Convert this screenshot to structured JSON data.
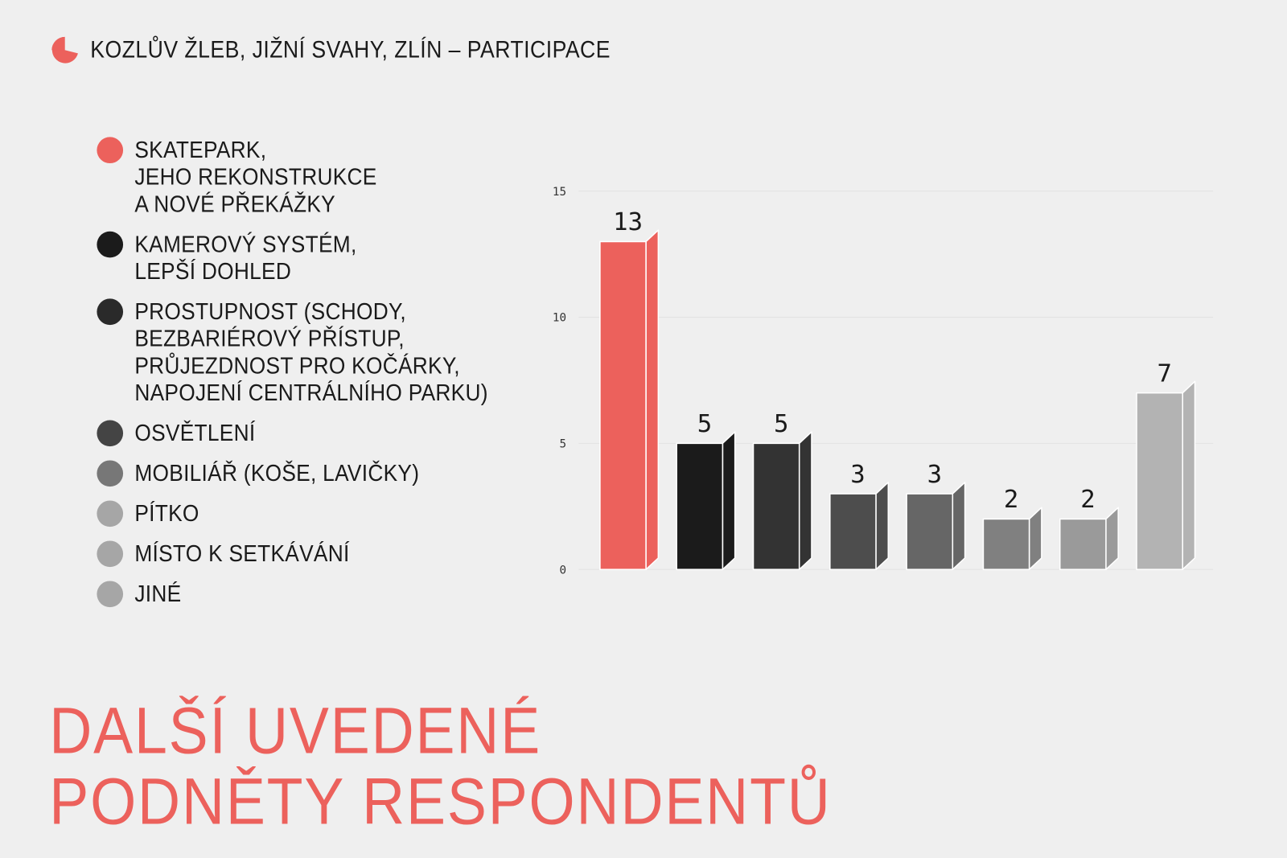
{
  "header": {
    "title": "KOZLŮV ŽLEB, JIŽNÍ SVAHY, ZLÍN – PARTICIPACE",
    "icon": "pie-chart-icon"
  },
  "legend": [
    {
      "label": "SKATEPARK,\nJEHO REKONSTRUKCE\nA NOVÉ PŘEKÁŽKY",
      "color": "#ec615c"
    },
    {
      "label": "KAMEROVÝ SYSTÉM,\nLEPŠÍ DOHLED",
      "color": "#1b1b1b"
    },
    {
      "label": "PROSTUPNOST (SCHODY,\nBEZBARIÉROVÝ PŘÍSTUP,\nPRŮJEZDNOST PRO KOČÁRKY,\nNAPOJENÍ CENTRÁLNÍHO PARKU)",
      "color": "#2a2a2a"
    },
    {
      "label": "OSVĚTLENÍ",
      "color": "#444444"
    },
    {
      "label": "MOBILIÁŘ (KOŠE, LAVIČKY)",
      "color": "#777777"
    },
    {
      "label": "PÍTKO",
      "color": "#a6a6a6"
    },
    {
      "label": "MÍSTO K SETKÁVÁNÍ",
      "color": "#a6a6a6"
    },
    {
      "label": "JINÉ",
      "color": "#a6a6a6"
    }
  ],
  "title": "DALŠÍ UVEDENÉ\nPODNĚTY RESPONDENTŮ",
  "accent": "#ec615c",
  "chart_data": {
    "type": "bar",
    "style": "3d",
    "values": [
      13,
      5,
      5,
      3,
      3,
      2,
      2,
      7
    ],
    "colors": [
      "#ec615c",
      "#1b1b1b",
      "#333333",
      "#4d4d4d",
      "#666666",
      "#808080",
      "#9a9a9a",
      "#b3b3b3"
    ],
    "ylim": [
      0,
      15
    ],
    "yticks": [
      0,
      5,
      10,
      15
    ],
    "grid": true,
    "legend": "left",
    "data_labels": true
  }
}
